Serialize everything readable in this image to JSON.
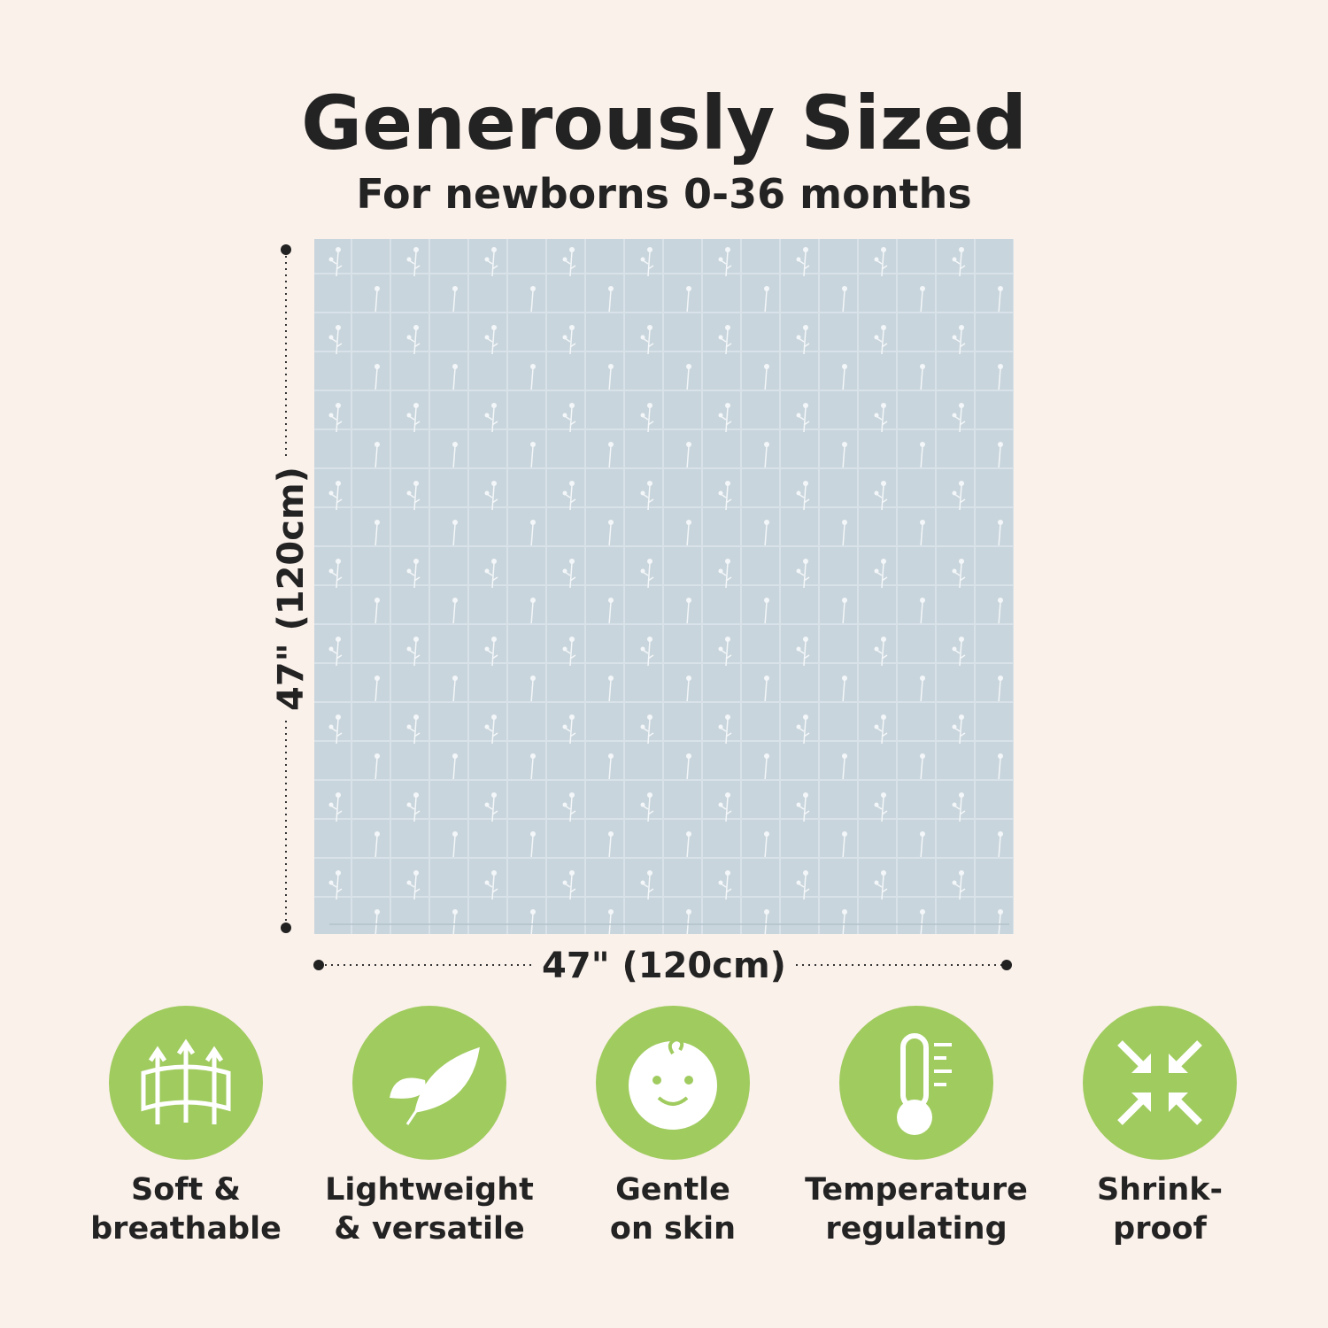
{
  "header": {
    "title": "Generously Sized",
    "subtitle": "For newborns 0-36 months"
  },
  "dimensions": {
    "height": "47\" (120cm)",
    "width": "47\" (120cm)"
  },
  "features": [
    {
      "lines": [
        "Soft &",
        "breathable"
      ]
    },
    {
      "lines": [
        "Lightweight",
        "& versatile"
      ]
    },
    {
      "lines": [
        "Gentle",
        "on skin"
      ]
    },
    {
      "lines": [
        "Temperature",
        "regulating"
      ]
    },
    {
      "lines": [
        "Shrink-",
        "proof"
      ]
    }
  ]
}
